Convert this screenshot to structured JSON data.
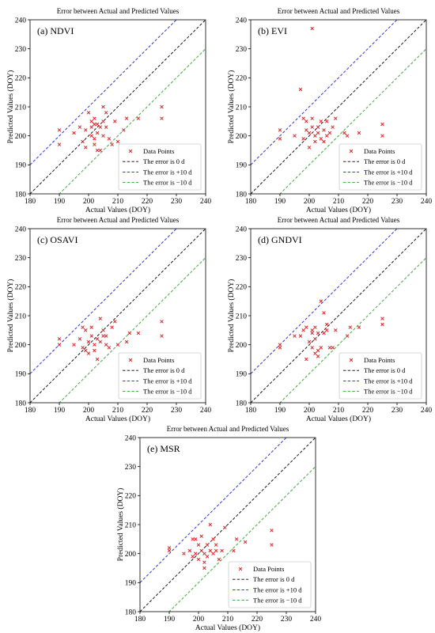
{
  "figure": {
    "panel_title": "Error between Actual and Predicted Values",
    "xlabel": "Actual Values (DOY)",
    "ylabel": "Predicted Values (DOY)",
    "legend": {
      "points": "Data Points",
      "zero": "The error is 0 d",
      "plus": "The error is +10 d",
      "minus": "The error is −10 d"
    },
    "colors": {
      "points": "#d62728",
      "zero": "#000000",
      "plus": "#1f1fd6",
      "minus": "#2ca02c"
    }
  },
  "chart_data": [
    {
      "type": "scatter",
      "label": "(a) NDVI",
      "title": "Error between Actual and Predicted Values",
      "xlabel": "Actual Values (DOY)",
      "ylabel": "Predicted Values (DOY)",
      "xlim": [
        180,
        240
      ],
      "ylim": [
        180,
        240
      ],
      "xticks": [
        180,
        190,
        200,
        210,
        220,
        230,
        240
      ],
      "yticks": [
        180,
        190,
        200,
        210,
        220,
        230,
        240
      ],
      "reference_lines": [
        {
          "name": "The error is 0 d",
          "offset": 0
        },
        {
          "name": "The error is +10 d",
          "offset": 10
        },
        {
          "name": "The error is −10 d",
          "offset": -10
        }
      ],
      "series": [
        {
          "name": "Data Points",
          "points": [
            [
              190,
              202
            ],
            [
              190,
              197
            ],
            [
              195,
              201
            ],
            [
              197,
              203
            ],
            [
              198,
              198
            ],
            [
              199,
              202
            ],
            [
              199,
              196
            ],
            [
              200,
              208
            ],
            [
              201,
              205
            ],
            [
              201,
              203
            ],
            [
              201,
              200
            ],
            [
              202,
              206
            ],
            [
              202,
              204
            ],
            [
              202,
              199
            ],
            [
              202,
              197
            ],
            [
              203,
              195
            ],
            [
              203,
              204
            ],
            [
              203,
              201
            ],
            [
              204,
              195
            ],
            [
              204,
              203
            ],
            [
              205,
              210
            ],
            [
              205,
              205
            ],
            [
              205,
              200
            ],
            [
              206,
              208
            ],
            [
              206,
              203
            ],
            [
              207,
              199
            ],
            [
              208,
              197
            ],
            [
              209,
              205
            ],
            [
              210,
              198
            ],
            [
              212,
              202
            ],
            [
              213,
              206
            ],
            [
              217,
              206
            ],
            [
              225,
              210
            ],
            [
              225,
              206
            ]
          ]
        }
      ]
    },
    {
      "type": "scatter",
      "label": "(b) EVI",
      "title": "Error between Actual and Predicted Values",
      "xlabel": "Actual Values (DOY)",
      "ylabel": "Predicted Values (DOY)",
      "xlim": [
        180,
        240
      ],
      "ylim": [
        180,
        240
      ],
      "xticks": [
        180,
        190,
        200,
        210,
        220,
        230,
        240
      ],
      "yticks": [
        180,
        190,
        200,
        210,
        220,
        230,
        240
      ],
      "reference_lines": [
        {
          "name": "The error is 0 d",
          "offset": 0
        },
        {
          "name": "The error is +10 d",
          "offset": 10
        },
        {
          "name": "The error is −10 d",
          "offset": -10
        }
      ],
      "series": [
        {
          "name": "Data Points",
          "points": [
            [
              190,
              202
            ],
            [
              190,
              199
            ],
            [
              195,
              200
            ],
            [
              197,
              216
            ],
            [
              198,
              206
            ],
            [
              198,
              199
            ],
            [
              199,
              205
            ],
            [
              199,
              202
            ],
            [
              200,
              201
            ],
            [
              200,
              196
            ],
            [
              201,
              237
            ],
            [
              201,
              206
            ],
            [
              201,
              203
            ],
            [
              202,
              200
            ],
            [
              202,
              198
            ],
            [
              203,
              203
            ],
            [
              203,
              201
            ],
            [
              204,
              199
            ],
            [
              204,
              205
            ],
            [
              205,
              202
            ],
            [
              205,
              198
            ],
            [
              206,
              205
            ],
            [
              206,
              200
            ],
            [
              207,
              201
            ],
            [
              208,
              203
            ],
            [
              209,
              206
            ],
            [
              212,
              201
            ],
            [
              213,
              200
            ],
            [
              217,
              201
            ],
            [
              225,
              204
            ],
            [
              225,
              200
            ]
          ]
        }
      ]
    },
    {
      "type": "scatter",
      "label": "(c) OSAVI",
      "title": "Error between Actual and Predicted Values",
      "xlabel": "Actual Values (DOY)",
      "ylabel": "Predicted Values (DOY)",
      "xlim": [
        180,
        240
      ],
      "ylim": [
        180,
        240
      ],
      "xticks": [
        180,
        190,
        200,
        210,
        220,
        230,
        240
      ],
      "yticks": [
        180,
        190,
        200,
        210,
        220,
        230,
        240
      ],
      "reference_lines": [
        {
          "name": "The error is 0 d",
          "offset": 0
        },
        {
          "name": "The error is +10 d",
          "offset": 10
        },
        {
          "name": "The error is −10 d",
          "offset": -10
        }
      ],
      "series": [
        {
          "name": "Data Points",
          "points": [
            [
              190,
              202
            ],
            [
              190,
              200
            ],
            [
              195,
              200
            ],
            [
              197,
              202
            ],
            [
              198,
              206
            ],
            [
              198,
              199
            ],
            [
              199,
              205
            ],
            [
              199,
              198
            ],
            [
              200,
              201
            ],
            [
              200,
              197
            ],
            [
              201,
              206
            ],
            [
              201,
              203
            ],
            [
              202,
              200
            ],
            [
              202,
              198
            ],
            [
              203,
              195
            ],
            [
              203,
              202
            ],
            [
              204,
              209
            ],
            [
              204,
              201
            ],
            [
              205,
              205
            ],
            [
              205,
              203
            ],
            [
              206,
              203
            ],
            [
              206,
              200
            ],
            [
              207,
              199
            ],
            [
              208,
              206
            ],
            [
              209,
              208
            ],
            [
              210,
              200
            ],
            [
              213,
              201
            ],
            [
              214,
              204
            ],
            [
              217,
              204
            ],
            [
              225,
              208
            ],
            [
              225,
              203
            ]
          ]
        }
      ]
    },
    {
      "type": "scatter",
      "label": "(d) GNDVI",
      "title": "Error between Actual and Predicted Values",
      "xlabel": "Actual Values (DOY)",
      "ylabel": "Predicted Values (DOY)",
      "xlim": [
        180,
        240
      ],
      "ylim": [
        180,
        240
      ],
      "xticks": [
        180,
        190,
        200,
        210,
        220,
        230,
        240
      ],
      "yticks": [
        180,
        190,
        200,
        210,
        220,
        230,
        240
      ],
      "reference_lines": [
        {
          "name": "The error is 0 d",
          "offset": 0
        },
        {
          "name": "The error is +10 d",
          "offset": 10
        },
        {
          "name": "The error is −10 d",
          "offset": -10
        }
      ],
      "series": [
        {
          "name": "Data Points",
          "points": [
            [
              190,
              200
            ],
            [
              190,
              199
            ],
            [
              195,
              203
            ],
            [
              197,
              203
            ],
            [
              198,
              205
            ],
            [
              199,
              206
            ],
            [
              199,
              195
            ],
            [
              200,
              201
            ],
            [
              201,
              204
            ],
            [
              201,
              205
            ],
            [
              201,
              199
            ],
            [
              202,
              206
            ],
            [
              202,
              197
            ],
            [
              202,
              202
            ],
            [
              203,
              196
            ],
            [
              203,
              198
            ],
            [
              203,
              204
            ],
            [
              204,
              215
            ],
            [
              204,
              199
            ],
            [
              205,
              211
            ],
            [
              205,
              204
            ],
            [
              206,
              207
            ],
            [
              206,
              205
            ],
            [
              207,
              199
            ],
            [
              208,
              199
            ],
            [
              209,
              205
            ],
            [
              213,
              203
            ],
            [
              214,
              206
            ],
            [
              217,
              206
            ],
            [
              225,
              209
            ],
            [
              225,
              207
            ]
          ]
        }
      ]
    },
    {
      "type": "scatter",
      "label": "(e) MSR",
      "title": "Error between Actual and Predicted Values",
      "xlabel": "Actual Values (DOY)",
      "ylabel": "Predicted Values (DOY)",
      "xlim": [
        180,
        240
      ],
      "ylim": [
        180,
        240
      ],
      "xticks": [
        180,
        190,
        200,
        210,
        220,
        230,
        240
      ],
      "yticks": [
        180,
        190,
        200,
        210,
        220,
        230,
        240
      ],
      "reference_lines": [
        {
          "name": "The error is 0 d",
          "offset": 0
        },
        {
          "name": "The error is +10 d",
          "offset": 10
        },
        {
          "name": "The error is −10 d",
          "offset": -10
        }
      ],
      "series": [
        {
          "name": "Data Points",
          "points": [
            [
              190,
              202
            ],
            [
              190,
              201
            ],
            [
              195,
              200
            ],
            [
              197,
              201
            ],
            [
              198,
              205
            ],
            [
              198,
              199
            ],
            [
              199,
              205
            ],
            [
              199,
              200
            ],
            [
              200,
              203
            ],
            [
              200,
              198
            ],
            [
              201,
              206
            ],
            [
              201,
              201
            ],
            [
              202,
              200
            ],
            [
              202,
              197
            ],
            [
              202,
              195
            ],
            [
              203,
              203
            ],
            [
              203,
              199
            ],
            [
              204,
              210
            ],
            [
              204,
              201
            ],
            [
              205,
              205
            ],
            [
              205,
              200
            ],
            [
              206,
              203
            ],
            [
              206,
              201
            ],
            [
              207,
              198
            ],
            [
              208,
              201
            ],
            [
              209,
              209
            ],
            [
              212,
              201
            ],
            [
              213,
              205
            ],
            [
              216,
              204
            ],
            [
              225,
              208
            ],
            [
              225,
              203
            ]
          ]
        }
      ]
    }
  ]
}
